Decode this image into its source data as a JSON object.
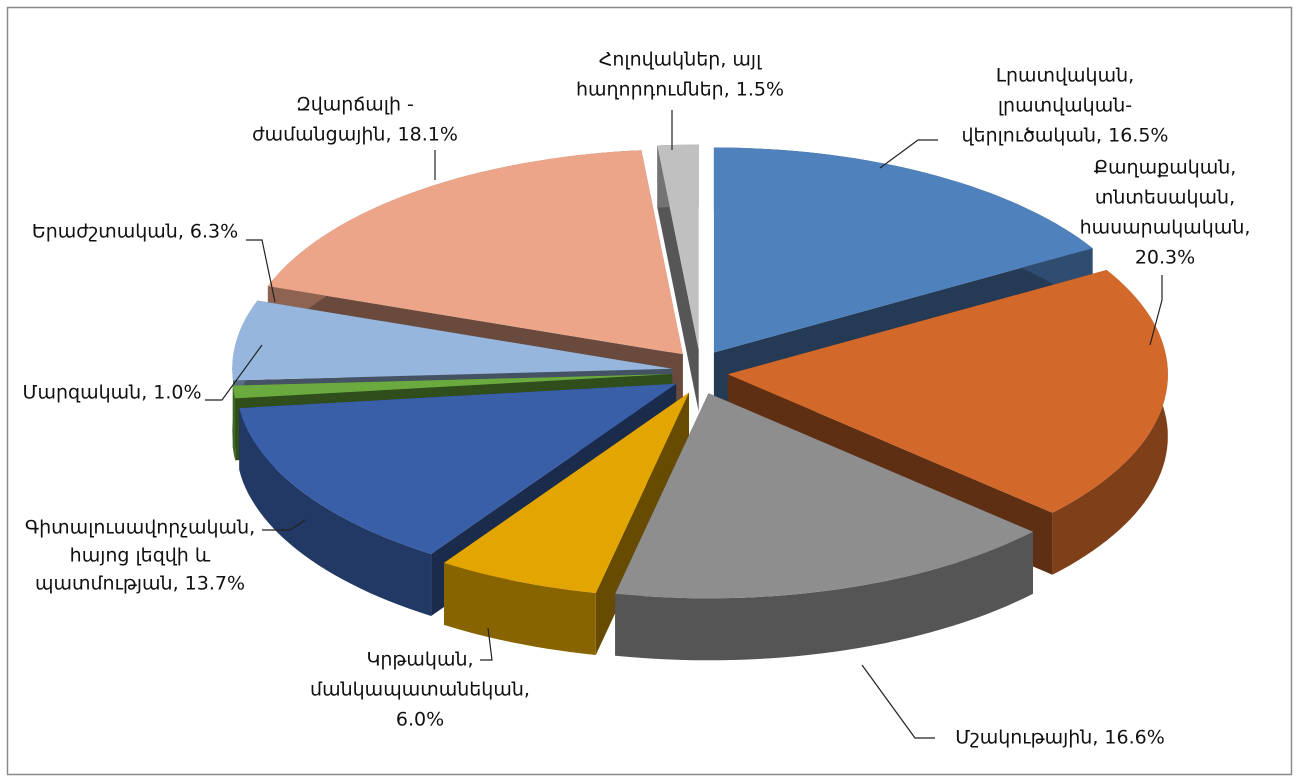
{
  "chart_data": {
    "type": "pie3d",
    "values": [
      16.5,
      20.3,
      16.6,
      6.0,
      13.7,
      1.0,
      6.3,
      18.1,
      1.5
    ],
    "value_labels": [
      [
        "Լրատվական,",
        "լրատվական-",
        "վերլուծական, 16.5%"
      ],
      [
        "Քաղաքական,",
        "տնտեսական,",
        "հասարակական,",
        "20.3%"
      ],
      [
        "Մշակութային, 16.6%"
      ],
      [
        "Կրթական,",
        "մանկապատանեկան,",
        "6.0%"
      ],
      [
        "Գիտալուսավորչական,",
        "հայոց լեզվի և",
        "պատմության, 13.7%"
      ],
      [
        "Մարզական, 1.0%"
      ],
      [
        "Երաժշտական, 6.3%"
      ],
      [
        "Զվարճալի -",
        "ժամանցային, 18.1%"
      ],
      [
        "Հոլովակներ, այլ",
        "հաղորդումներ, 1.5%"
      ]
    ],
    "colors": [
      "#4f81bd",
      "#d2692a",
      "#8e8e8e",
      "#e3a600",
      "#3a5fa9",
      "#6aaa3f",
      "#97b6dd",
      "#eca588",
      "#c0c0c0"
    ]
  }
}
